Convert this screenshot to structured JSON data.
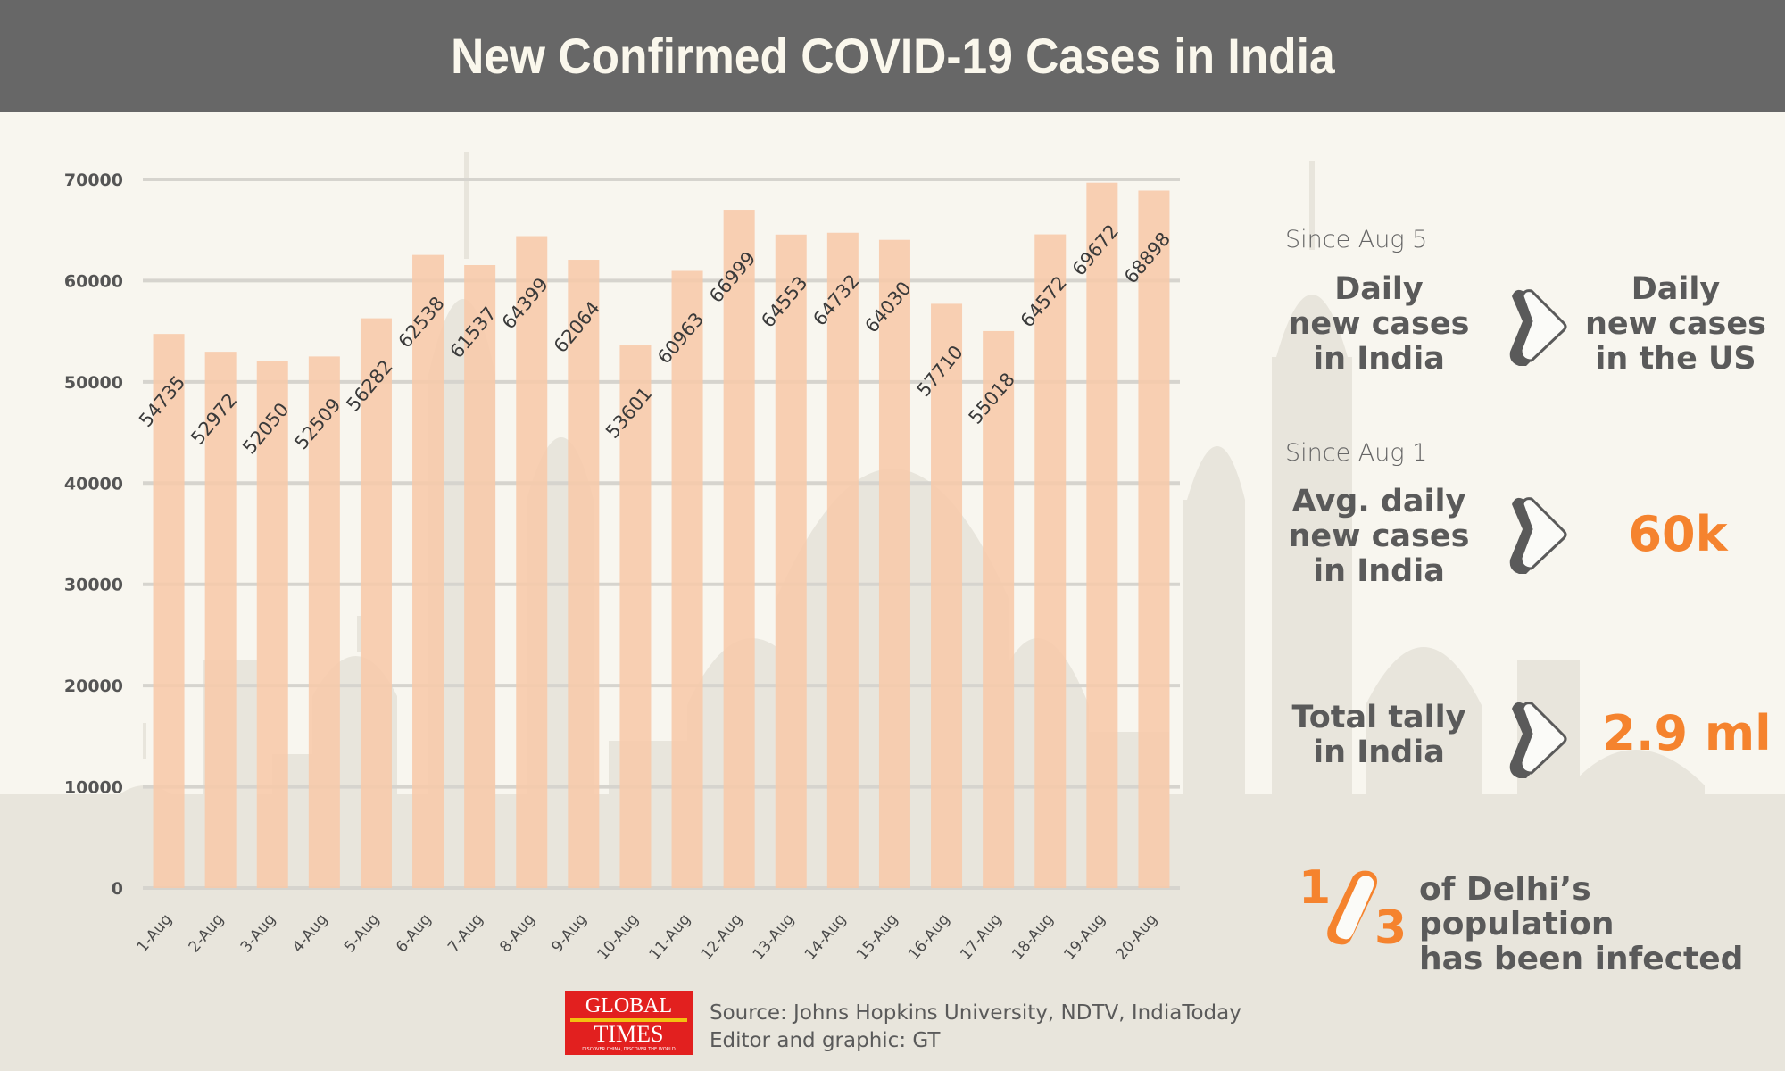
{
  "title": "New Confirmed COVID-19 Cases in India",
  "chart_data": {
    "type": "bar",
    "title": "New Confirmed COVID-19 Cases in India",
    "xlabel": "",
    "ylabel": "",
    "ylim": [
      0,
      70000
    ],
    "yticks": [
      0,
      10000,
      20000,
      30000,
      40000,
      50000,
      60000,
      70000
    ],
    "ytick_labels": [
      "0",
      "10000",
      "20000",
      "30000",
      "40000",
      "50000",
      "60000",
      "70000"
    ],
    "grid": true,
    "categories": [
      "1-Aug",
      "2-Aug",
      "3-Aug",
      "4-Aug",
      "5-Aug",
      "6-Aug",
      "7-Aug",
      "8-Aug",
      "9-Aug",
      "10-Aug",
      "11-Aug",
      "12-Aug",
      "13-Aug",
      "14-Aug",
      "15-Aug",
      "16-Aug",
      "17-Aug",
      "18-Aug",
      "19-Aug",
      "20-Aug"
    ],
    "values": [
      54735,
      52972,
      52050,
      52509,
      56282,
      62538,
      61537,
      64399,
      62064,
      53601,
      60963,
      66999,
      64553,
      64732,
      64030,
      57710,
      55018,
      64572,
      69672,
      68898
    ],
    "value_labels": [
      "54735",
      "52972",
      "52050",
      "52509",
      "56282",
      "62538",
      "61537",
      "64399",
      "62064",
      "53601",
      "60963",
      "66999",
      "64553",
      "64732",
      "64030",
      "57710",
      "55018",
      "64572",
      "69672",
      "68898"
    ],
    "bar_color": "#f7c9aa"
  },
  "panel": {
    "section1": {
      "since": "Since Aug 5",
      "left": [
        "Daily",
        "new cases",
        "in India"
      ],
      "right": [
        "Daily",
        "new cases",
        "in the US"
      ],
      "comparison": "greater-than"
    },
    "section2": {
      "since": "Since Aug 1",
      "left": [
        "Avg. daily",
        "new cases",
        "in India"
      ],
      "value": "60k"
    },
    "section3": {
      "left": [
        "Total tally",
        "in India"
      ],
      "value": "2.9 ml"
    },
    "section4": {
      "numerator": "1",
      "denominator": "3",
      "text": [
        "of Delhi’s population",
        "has been infected"
      ]
    }
  },
  "colors": {
    "header_bg": "#676767",
    "accent": "#f5832e",
    "text_dark": "#5a5a5a",
    "bar": "#f7c9aa",
    "background": "#f8f6ef",
    "logo_red": "#e2201f"
  },
  "footer": {
    "logo_line1": "GLOBAL",
    "logo_line2": "TIMES",
    "logo_tagline": "DISCOVER CHINA, DISCOVER THE WORLD",
    "source": "Source: Johns Hopkins University, NDTV, IndiaToday",
    "credit": "Editor and graphic: GT"
  }
}
